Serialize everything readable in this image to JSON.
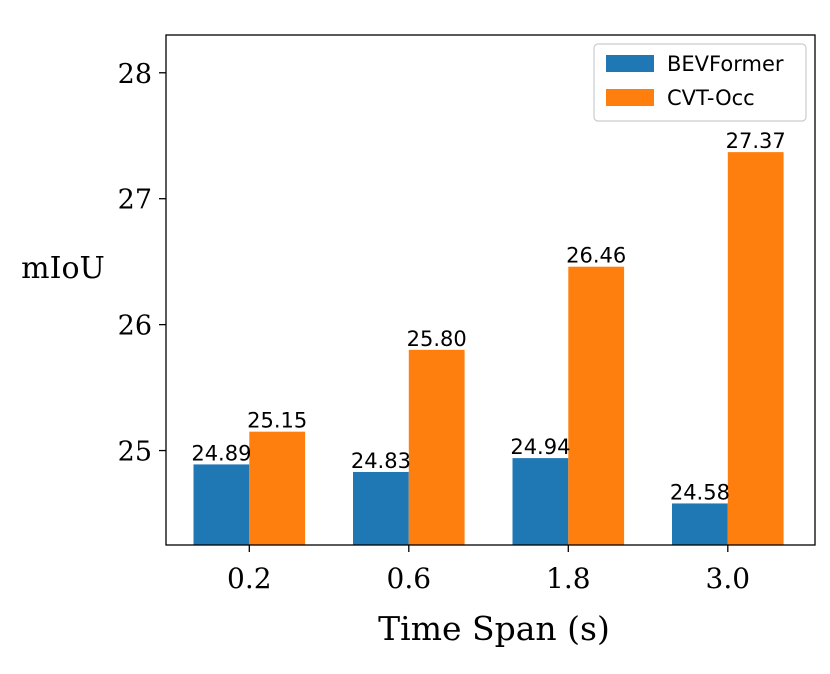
{
  "chart_data": {
    "type": "bar",
    "title": "",
    "xlabel": "Time Span (s)",
    "ylabel": "mIoU",
    "categories": [
      "0.2",
      "0.6",
      "1.8",
      "3.0"
    ],
    "series": [
      {
        "name": "BEVFormer",
        "color": "#1f77b4",
        "values": [
          24.89,
          24.83,
          24.94,
          24.58
        ],
        "labels": [
          "24.89",
          "24.83",
          "24.94",
          "24.58"
        ]
      },
      {
        "name": "CVT-Occ",
        "color": "#ff7f0e",
        "values": [
          25.15,
          25.8,
          26.46,
          27.37
        ],
        "labels": [
          "25.15",
          "25.80",
          "26.46",
          "27.37"
        ]
      }
    ],
    "ylim": [
      24.25,
      28.3
    ],
    "yticks": [
      25,
      26,
      27,
      28
    ],
    "ytick_labels": [
      "25",
      "26",
      "27",
      "28"
    ],
    "legend_position": "top-right",
    "grid": false
  }
}
